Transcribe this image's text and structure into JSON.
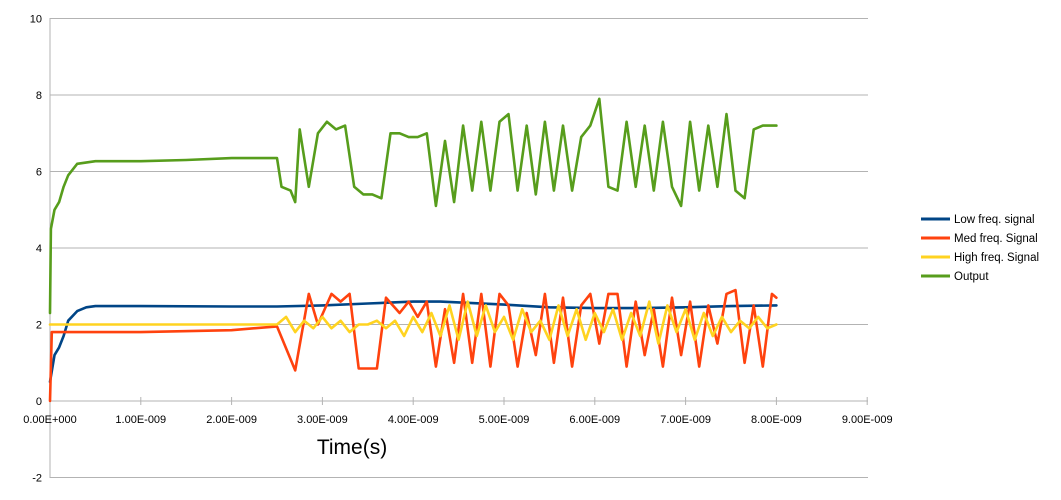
{
  "chart_data": {
    "type": "line",
    "title": "",
    "xlabel": "Time(s)",
    "ylabel": "",
    "xlim": [
      0,
      9e-09
    ],
    "ylim": [
      -2,
      10
    ],
    "x_ticks": [
      0,
      1e-09,
      2e-09,
      3e-09,
      4e-09,
      5e-09,
      6e-09,
      7e-09,
      8e-09,
      9e-09
    ],
    "x_tick_labels": [
      "0.00E+000",
      "1.00E-009",
      "2.00E-009",
      "3.00E-009",
      "4.00E-009",
      "5.00E-009",
      "6.00E-009",
      "7.00E-009",
      "8.00E-009",
      "9.00E-009"
    ],
    "y_ticks": [
      -2,
      0,
      2,
      4,
      6,
      8,
      10
    ],
    "y_tick_labels": [
      "-2",
      "0",
      "2",
      "4",
      "6",
      "8",
      "10"
    ],
    "grid": "horizontal",
    "legend_position": "right",
    "series": [
      {
        "name": "Low freq. signal",
        "color": "#004586",
        "x": [
          0,
          5e-11,
          1e-10,
          1.5e-10,
          2e-10,
          3e-10,
          4e-10,
          5e-10,
          1e-09,
          2e-09,
          2.5e-09,
          3e-09,
          3.5e-09,
          4e-09,
          4.3e-09,
          5e-09,
          5.5e-09,
          6e-09,
          6.5e-09,
          7e-09,
          7.5e-09,
          8e-09
        ],
        "y": [
          0.5,
          1.2,
          1.4,
          1.7,
          2.1,
          2.35,
          2.45,
          2.48,
          2.48,
          2.47,
          2.47,
          2.5,
          2.55,
          2.6,
          2.6,
          2.52,
          2.45,
          2.43,
          2.43,
          2.45,
          2.48,
          2.5
        ]
      },
      {
        "name": "Med freq. Signal",
        "color": "#ff420e",
        "x": [
          0,
          2e-11,
          1e-10,
          1e-09,
          2e-09,
          2.5e-09,
          2.7e-09,
          2.85e-09,
          2.95e-09,
          3.1e-09,
          3.2e-09,
          3.3e-09,
          3.4e-09,
          3.5e-09,
          3.6e-09,
          3.7e-09,
          3.85e-09,
          3.95e-09,
          4.05e-09,
          4.15e-09,
          4.25e-09,
          4.35e-09,
          4.45e-09,
          4.55e-09,
          4.65e-09,
          4.75e-09,
          4.85e-09,
          4.95e-09,
          5.05e-09,
          5.15e-09,
          5.25e-09,
          5.35e-09,
          5.45e-09,
          5.55e-09,
          5.65e-09,
          5.75e-09,
          5.85e-09,
          5.95e-09,
          6.05e-09,
          6.15e-09,
          6.25e-09,
          6.35e-09,
          6.45e-09,
          6.55e-09,
          6.65e-09,
          6.75e-09,
          6.85e-09,
          6.95e-09,
          7.05e-09,
          7.15e-09,
          7.25e-09,
          7.35e-09,
          7.45e-09,
          7.55e-09,
          7.65e-09,
          7.75e-09,
          7.85e-09,
          7.95e-09,
          8e-09
        ],
        "y": [
          0,
          1.8,
          1.8,
          1.8,
          1.85,
          1.95,
          0.8,
          2.8,
          2.0,
          2.8,
          2.6,
          2.8,
          0.85,
          0.85,
          0.85,
          2.7,
          2.3,
          2.6,
          2.2,
          2.6,
          0.9,
          2.4,
          1.0,
          2.8,
          1.0,
          2.8,
          0.9,
          2.8,
          2.5,
          0.9,
          2.3,
          1.2,
          2.8,
          1.0,
          2.7,
          0.9,
          2.5,
          2.8,
          1.5,
          2.8,
          2.8,
          0.9,
          2.6,
          1.2,
          2.4,
          0.9,
          2.7,
          1.2,
          2.6,
          0.9,
          2.5,
          1.5,
          2.8,
          2.9,
          1.0,
          2.5,
          0.9,
          2.8,
          2.7
        ]
      },
      {
        "name": "High freq. Signal",
        "color": "#ffd320",
        "x": [
          0,
          2e-11,
          1e-10,
          1e-09,
          2e-09,
          2.5e-09,
          2.6e-09,
          2.7e-09,
          2.8e-09,
          2.9e-09,
          3e-09,
          3.1e-09,
          3.2e-09,
          3.3e-09,
          3.4e-09,
          3.5e-09,
          3.6e-09,
          3.7e-09,
          3.8e-09,
          3.9e-09,
          4e-09,
          4.1e-09,
          4.2e-09,
          4.3e-09,
          4.4e-09,
          4.5e-09,
          4.6e-09,
          4.7e-09,
          4.8e-09,
          4.9e-09,
          5e-09,
          5.1e-09,
          5.2e-09,
          5.3e-09,
          5.4e-09,
          5.5e-09,
          5.6e-09,
          5.7e-09,
          5.8e-09,
          5.9e-09,
          6e-09,
          6.1e-09,
          6.2e-09,
          6.3e-09,
          6.4e-09,
          6.5e-09,
          6.6e-09,
          6.7e-09,
          6.8e-09,
          6.9e-09,
          7e-09,
          7.1e-09,
          7.2e-09,
          7.3e-09,
          7.4e-09,
          7.5e-09,
          7.6e-09,
          7.7e-09,
          7.8e-09,
          7.9e-09,
          8e-09
        ],
        "y": [
          2.0,
          2.0,
          2.0,
          2.0,
          2.0,
          2.0,
          2.2,
          1.8,
          2.1,
          1.9,
          2.2,
          1.9,
          2.1,
          1.8,
          2.0,
          2.0,
          2.1,
          1.9,
          2.1,
          1.7,
          2.2,
          1.8,
          2.3,
          1.7,
          2.5,
          1.6,
          2.6,
          1.7,
          2.5,
          1.8,
          2.2,
          1.6,
          2.4,
          1.8,
          2.1,
          1.6,
          2.5,
          1.7,
          2.4,
          1.6,
          2.3,
          1.8,
          2.4,
          1.6,
          2.3,
          1.7,
          2.6,
          1.5,
          2.5,
          1.8,
          2.4,
          1.6,
          2.3,
          1.7,
          2.2,
          1.8,
          2.1,
          1.9,
          2.2,
          1.9,
          2.0
        ]
      },
      {
        "name": "Output",
        "color": "#579d1c",
        "x": [
          0,
          1e-11,
          5e-11,
          1e-10,
          1.5e-10,
          2e-10,
          3e-10,
          5e-10,
          1e-09,
          1.5e-09,
          2e-09,
          2.5e-09,
          2.55e-09,
          2.65e-09,
          2.7e-09,
          2.75e-09,
          2.85e-09,
          2.95e-09,
          3.05e-09,
          3.15e-09,
          3.25e-09,
          3.35e-09,
          3.45e-09,
          3.55e-09,
          3.65e-09,
          3.75e-09,
          3.85e-09,
          3.95e-09,
          4.05e-09,
          4.15e-09,
          4.25e-09,
          4.35e-09,
          4.45e-09,
          4.55e-09,
          4.65e-09,
          4.75e-09,
          4.85e-09,
          4.95e-09,
          5.05e-09,
          5.15e-09,
          5.25e-09,
          5.35e-09,
          5.45e-09,
          5.55e-09,
          5.65e-09,
          5.75e-09,
          5.85e-09,
          5.95e-09,
          6.05e-09,
          6.15e-09,
          6.25e-09,
          6.35e-09,
          6.45e-09,
          6.55e-09,
          6.65e-09,
          6.75e-09,
          6.85e-09,
          6.95e-09,
          7.05e-09,
          7.15e-09,
          7.25e-09,
          7.35e-09,
          7.45e-09,
          7.55e-09,
          7.65e-09,
          7.75e-09,
          7.85e-09,
          7.95e-09,
          8e-09
        ],
        "y": [
          2.3,
          4.5,
          5.0,
          5.2,
          5.6,
          5.9,
          6.2,
          6.27,
          6.27,
          6.3,
          6.35,
          6.35,
          5.6,
          5.5,
          5.2,
          7.1,
          5.6,
          7.0,
          7.3,
          7.1,
          7.2,
          5.6,
          5.4,
          5.4,
          5.3,
          7.0,
          7.0,
          6.9,
          6.9,
          7.0,
          5.1,
          6.8,
          5.2,
          7.2,
          5.5,
          7.3,
          5.5,
          7.3,
          7.5,
          5.5,
          7.2,
          5.4,
          7.3,
          5.5,
          7.2,
          5.5,
          6.9,
          7.2,
          7.9,
          5.6,
          5.5,
          7.3,
          5.6,
          7.2,
          5.5,
          7.3,
          5.6,
          5.1,
          7.3,
          5.5,
          7.2,
          5.6,
          7.5,
          5.5,
          5.3,
          7.1,
          7.2,
          7.2,
          7.2
        ]
      }
    ]
  }
}
